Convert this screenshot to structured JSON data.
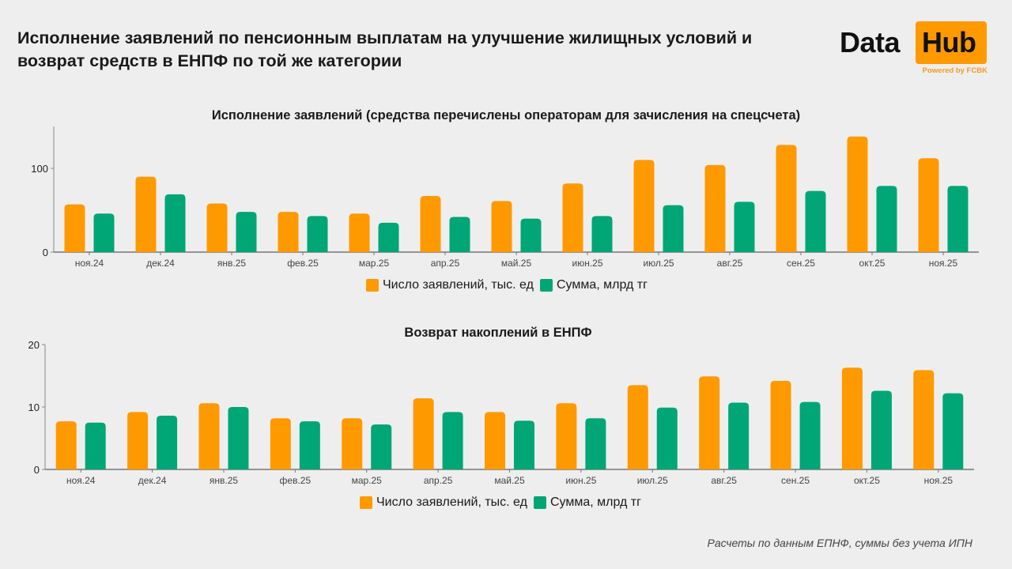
{
  "header": {
    "title": "Исполнение заявлений по пенсионным выплатам на улучшение жилищных условий и возврат средств в ЕНПФ по той же категории"
  },
  "logo": {
    "word1": "Data",
    "word2": "Hub",
    "tagline": "Powered by FCBK"
  },
  "colors": {
    "orange": "#ff9900",
    "green": "#00a676",
    "background": "#eeeeee"
  },
  "legend": {
    "series1": "Число заявлений, тыс. ед",
    "series2": "Сумма, млрд тг"
  },
  "footnote": "Расчеты по данным ЕПНФ, суммы без учета ИПН",
  "chart_data": [
    {
      "type": "bar",
      "title": "Исполнение заявлений (средства перечислены операторам для зачисления на спецсчета)",
      "xlabel": "",
      "ylabel": "",
      "ylim": [
        0,
        150
      ],
      "yticks": [
        0,
        100
      ],
      "grid": false,
      "legend": "bottom-center",
      "categories": [
        "ноя.24",
        "дек.24",
        "янв.25",
        "фев.25",
        "мар.25",
        "апр.25",
        "май.25",
        "июн.25",
        "июл.25",
        "авг.25",
        "сен.25",
        "окт.25",
        "ноя.25"
      ],
      "series": [
        {
          "name": "Число заявлений, тыс. ед",
          "color": "#ff9900",
          "values": [
            57,
            90,
            58,
            48,
            46,
            67,
            61,
            82,
            110,
            104,
            128,
            138,
            112
          ]
        },
        {
          "name": "Сумма, млрд тг",
          "color": "#00a676",
          "values": [
            46,
            69,
            48,
            43,
            35,
            42,
            40,
            43,
            56,
            60,
            73,
            79,
            79
          ]
        }
      ]
    },
    {
      "type": "bar",
      "title": "Возврат накоплений в ЕНПФ",
      "xlabel": "",
      "ylabel": "",
      "ylim": [
        0,
        20
      ],
      "yticks": [
        0,
        10,
        20
      ],
      "grid": false,
      "legend": "bottom-center",
      "categories": [
        "ноя.24",
        "дек.24",
        "янв.25",
        "фев.25",
        "мар.25",
        "апр.25",
        "май.25",
        "июн.25",
        "июл.25",
        "авг.25",
        "сен.25",
        "окт.25",
        "ноя.25"
      ],
      "series": [
        {
          "name": "Число заявлений, тыс. ед",
          "color": "#ff9900",
          "values": [
            7.7,
            9.2,
            10.6,
            8.2,
            8.2,
            11.4,
            9.2,
            10.6,
            13.5,
            14.9,
            14.2,
            16.3,
            15.9
          ]
        },
        {
          "name": "Сумма, млрд тг",
          "color": "#00a676",
          "values": [
            7.5,
            8.6,
            10.0,
            7.7,
            7.2,
            9.2,
            7.8,
            8.2,
            9.9,
            10.7,
            10.8,
            12.6,
            12.2
          ]
        }
      ]
    }
  ]
}
